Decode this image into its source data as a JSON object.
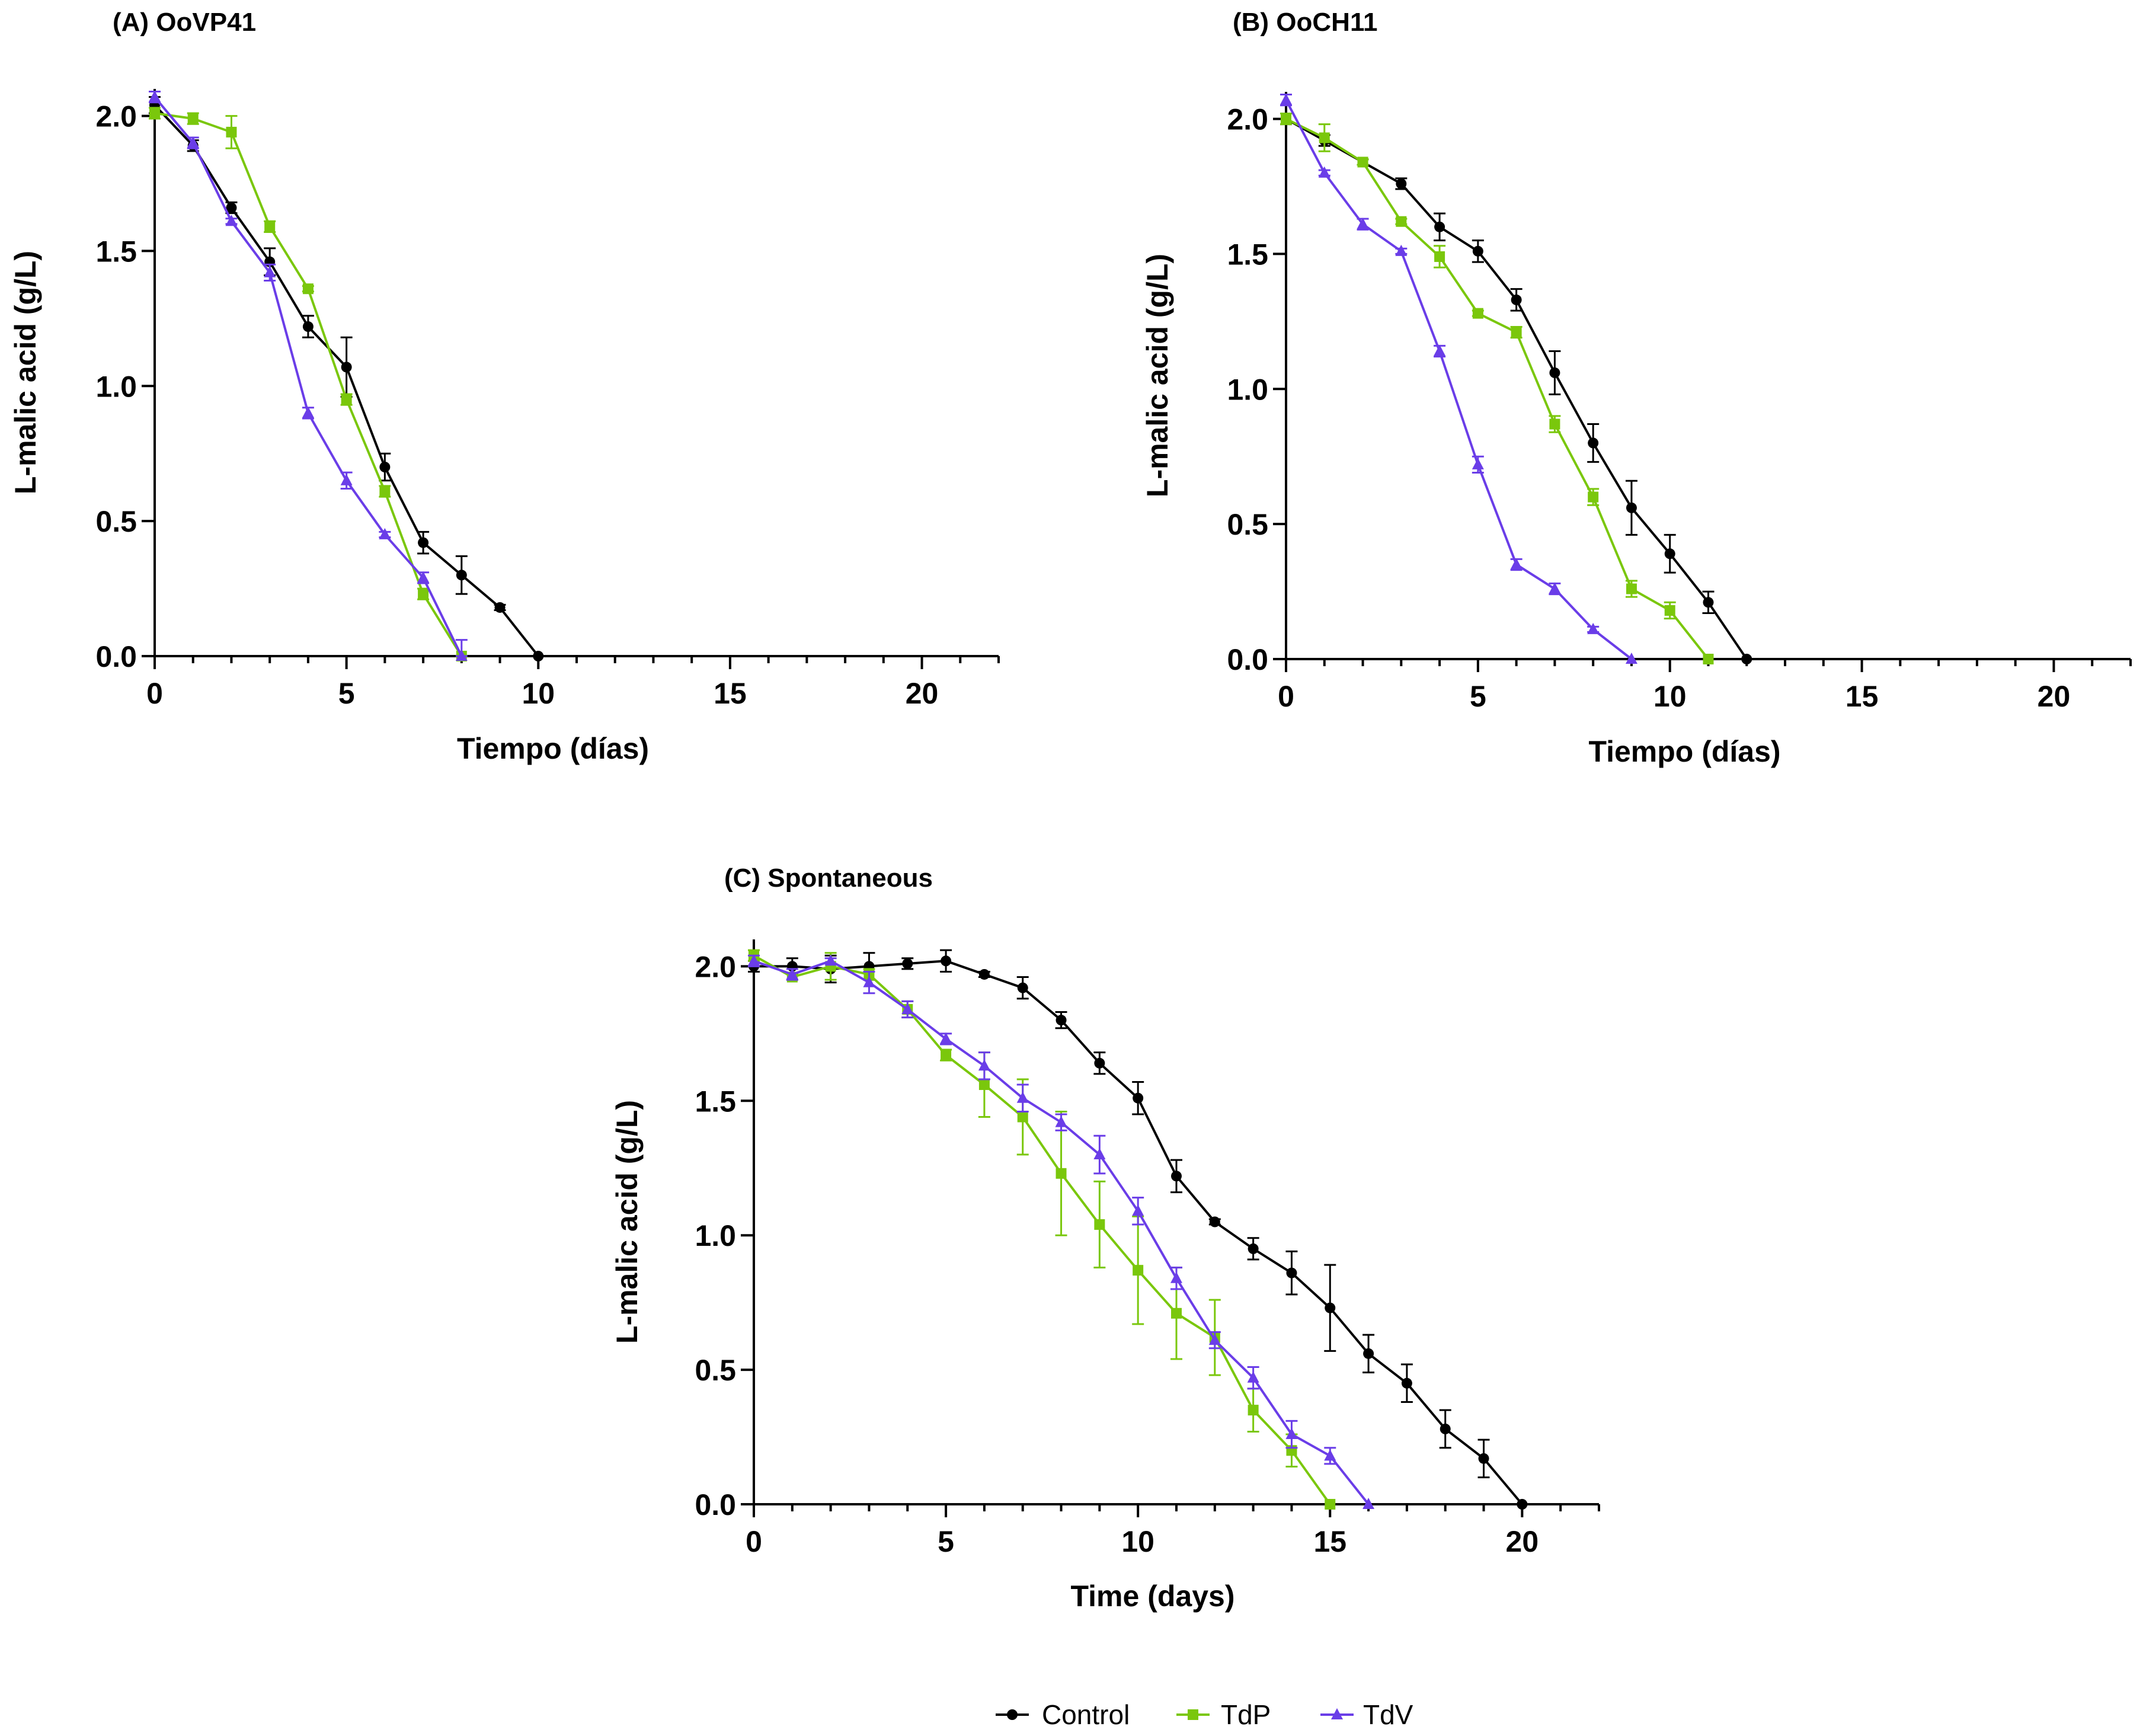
{
  "chart_data": [
    {
      "id": "A",
      "type": "line",
      "title": "(A) OoVP41",
      "xlabel": "Tiempo (días)",
      "ylabel": "L-malic acid (g/L)",
      "xlim": [
        0,
        22
      ],
      "ylim": [
        0,
        2.1
      ],
      "xticks": [
        0,
        5,
        10,
        15,
        20
      ],
      "yticks": [
        "0.0",
        "0.5",
        "1.0",
        "1.5",
        "2.0"
      ],
      "series": [
        {
          "name": "Control",
          "color": "#000000",
          "marker": "circle",
          "x": [
            0,
            1,
            2,
            3,
            4,
            5,
            6,
            7,
            8,
            9,
            10
          ],
          "y": [
            2.04,
            1.89,
            1.66,
            1.46,
            1.22,
            1.07,
            0.7,
            0.42,
            0.3,
            0.18,
            0.0
          ],
          "err": [
            0.03,
            0.02,
            0.02,
            0.05,
            0.04,
            0.11,
            0.05,
            0.04,
            0.07,
            0.01,
            0.0
          ]
        },
        {
          "name": "TdP",
          "color": "#7ac70c",
          "marker": "square",
          "x": [
            0,
            1,
            2,
            3,
            4,
            5,
            6,
            7,
            8
          ],
          "y": [
            2.01,
            1.99,
            1.94,
            1.59,
            1.36,
            0.95,
            0.61,
            0.23,
            0.0
          ],
          "err": [
            0.02,
            0.02,
            0.06,
            0.02,
            0.01,
            0.02,
            0.02,
            0.02,
            0.0
          ]
        },
        {
          "name": "TdV",
          "color": "#6a3de8",
          "marker": "triangle",
          "x": [
            0,
            1,
            2,
            3,
            4,
            5,
            6,
            7,
            8
          ],
          "y": [
            2.07,
            1.9,
            1.61,
            1.42,
            0.9,
            0.65,
            0.45,
            0.29,
            0.0
          ],
          "err": [
            0.02,
            0.02,
            0.01,
            0.03,
            0.02,
            0.03,
            0.01,
            0.02,
            0.06
          ]
        }
      ]
    },
    {
      "id": "B",
      "type": "line",
      "title": "(B) OoCH11",
      "xlabel": "Tiempo (días)",
      "ylabel": "L-malic acid (g/L)",
      "xlim": [
        0,
        22
      ],
      "ylim": [
        0,
        2.1
      ],
      "xticks": [
        0,
        5,
        10,
        15,
        20
      ],
      "yticks": [
        "0.0",
        "0.5",
        "1.0",
        "1.5",
        "2.0"
      ],
      "series": [
        {
          "name": "Control",
          "color": "#000000",
          "marker": "circle",
          "x": [
            0,
            1,
            2,
            3,
            4,
            5,
            6,
            7,
            8,
            9,
            10,
            11,
            12
          ],
          "y": [
            2.0,
            1.92,
            1.84,
            1.76,
            1.6,
            1.51,
            1.33,
            1.06,
            0.8,
            0.56,
            0.39,
            0.21,
            0.0
          ],
          "err": [
            0.02,
            0.02,
            0.01,
            0.02,
            0.05,
            0.04,
            0.04,
            0.08,
            0.07,
            0.1,
            0.07,
            0.04,
            0.0
          ]
        },
        {
          "name": "TdP",
          "color": "#7ac70c",
          "marker": "square",
          "x": [
            0,
            1,
            2,
            3,
            4,
            5,
            6,
            7,
            8,
            9,
            10,
            11
          ],
          "y": [
            2.0,
            1.93,
            1.84,
            1.62,
            1.49,
            1.28,
            1.21,
            0.87,
            0.6,
            0.26,
            0.18,
            0.0
          ],
          "err": [
            0.02,
            0.05,
            0.01,
            0.01,
            0.04,
            0.01,
            0.02,
            0.03,
            0.03,
            0.03,
            0.03,
            0.0
          ]
        },
        {
          "name": "TdV",
          "color": "#6a3de8",
          "marker": "triangle",
          "x": [
            0,
            1,
            2,
            3,
            4,
            5,
            6,
            7,
            8,
            9
          ],
          "y": [
            2.07,
            1.8,
            1.61,
            1.51,
            1.14,
            0.72,
            0.35,
            0.26,
            0.11,
            0.0
          ],
          "err": [
            0.02,
            0.01,
            0.02,
            0.01,
            0.02,
            0.03,
            0.02,
            0.02,
            0.01,
            0.0
          ]
        }
      ]
    },
    {
      "id": "C",
      "type": "line",
      "title": "(C) Spontaneous",
      "xlabel": "Time (days)",
      "ylabel": "L-malic acid (g/L)",
      "xlim": [
        0,
        22
      ],
      "ylim": [
        0,
        2.1
      ],
      "xticks": [
        0,
        5,
        10,
        15,
        20
      ],
      "yticks": [
        "0.0",
        "0.5",
        "1.0",
        "1.5",
        "2.0"
      ],
      "series": [
        {
          "name": "Control",
          "color": "#000000",
          "marker": "circle",
          "x": [
            0,
            1,
            2,
            3,
            4,
            5,
            6,
            7,
            8,
            9,
            10,
            11,
            12,
            13,
            14,
            15,
            16,
            17,
            18,
            19,
            20
          ],
          "y": [
            2.0,
            2.0,
            1.99,
            2.0,
            2.01,
            2.02,
            1.97,
            1.92,
            1.8,
            1.64,
            1.51,
            1.22,
            1.05,
            0.95,
            0.86,
            0.73,
            0.56,
            0.45,
            0.28,
            0.17,
            0.0
          ],
          "err": [
            0.02,
            0.03,
            0.05,
            0.05,
            0.02,
            0.04,
            0.01,
            0.04,
            0.03,
            0.04,
            0.06,
            0.06,
            0.01,
            0.04,
            0.08,
            0.16,
            0.07,
            0.07,
            0.07,
            0.07,
            0.0
          ]
        },
        {
          "name": "TdP",
          "color": "#7ac70c",
          "marker": "square",
          "x": [
            0,
            1,
            2,
            3,
            4,
            5,
            6,
            7,
            8,
            9,
            10,
            11,
            12,
            13,
            14,
            15
          ],
          "y": [
            2.04,
            1.96,
            2.0,
            1.97,
            1.84,
            1.67,
            1.56,
            1.44,
            1.23,
            1.04,
            0.87,
            0.71,
            0.62,
            0.35,
            0.2,
            0.0
          ],
          "err": [
            0.02,
            0.01,
            0.05,
            0.02,
            0.03,
            0.02,
            0.12,
            0.14,
            0.23,
            0.16,
            0.2,
            0.17,
            0.14,
            0.08,
            0.06,
            0.0
          ]
        },
        {
          "name": "TdV",
          "color": "#6a3de8",
          "marker": "triangle",
          "x": [
            0,
            1,
            2,
            3,
            4,
            5,
            6,
            7,
            8,
            9,
            10,
            11,
            12,
            13,
            14,
            15,
            16
          ],
          "y": [
            2.02,
            1.97,
            2.02,
            1.94,
            1.84,
            1.73,
            1.63,
            1.51,
            1.42,
            1.3,
            1.09,
            0.84,
            0.61,
            0.47,
            0.26,
            0.18,
            0.0
          ],
          "err": [
            0.02,
            0.02,
            0.01,
            0.04,
            0.03,
            0.02,
            0.05,
            0.05,
            0.03,
            0.07,
            0.05,
            0.04,
            0.03,
            0.04,
            0.05,
            0.03,
            0.0
          ]
        }
      ]
    }
  ],
  "legend": [
    {
      "label": "Control",
      "color": "#000000",
      "marker": "circle"
    },
    {
      "label": "TdP",
      "color": "#7ac70c",
      "marker": "square"
    },
    {
      "label": "TdV",
      "color": "#6a3de8",
      "marker": "triangle"
    }
  ]
}
